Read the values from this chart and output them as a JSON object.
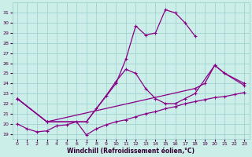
{
  "bg_color": "#cceee8",
  "grid_color": "#99cccc",
  "line_color": "#880088",
  "xlabel": "Windchill (Refroidissement éolien,°C)",
  "ylim": [
    18.5,
    32.0
  ],
  "xlim": [
    -0.5,
    23.5
  ],
  "yticks": [
    19,
    20,
    21,
    22,
    23,
    24,
    25,
    26,
    27,
    28,
    29,
    30,
    31
  ],
  "xticks": [
    0,
    1,
    2,
    3,
    4,
    5,
    6,
    7,
    8,
    9,
    10,
    11,
    12,
    13,
    14,
    15,
    16,
    17,
    18,
    19,
    20,
    21,
    22,
    23
  ],
  "line_top": {
    "x": [
      0,
      3,
      7,
      10,
      11,
      12,
      13,
      14,
      15,
      16,
      17,
      18
    ],
    "y": [
      22.5,
      20.2,
      20.2,
      24.0,
      26.4,
      29.7,
      28.8,
      29.0,
      31.3,
      31.0,
      30.0,
      28.7
    ]
  },
  "line_upper_mid": {
    "x": [
      0,
      3,
      7,
      8,
      9,
      10,
      11,
      12,
      13,
      14,
      15,
      16,
      17,
      18,
      20,
      21,
      23
    ],
    "y": [
      22.5,
      20.2,
      20.2,
      21.5,
      22.8,
      24.2,
      25.4,
      25.0,
      23.5,
      22.5,
      22.0,
      22.0,
      22.5,
      23.0,
      25.8,
      25.0,
      24.0
    ]
  },
  "line_lower_mid": {
    "x": [
      0,
      3,
      18,
      19,
      20,
      21,
      23
    ],
    "y": [
      22.5,
      20.2,
      23.5,
      24.0,
      25.8,
      25.0,
      23.8
    ]
  },
  "line_bottom": {
    "x": [
      0,
      1,
      2,
      3,
      4,
      5,
      6,
      7,
      8,
      9,
      10,
      11,
      12,
      13,
      14,
      15,
      16,
      17,
      18,
      19,
      20,
      21,
      22,
      23
    ],
    "y": [
      20.0,
      19.5,
      19.2,
      19.3,
      19.8,
      19.9,
      20.2,
      18.9,
      19.5,
      19.9,
      20.2,
      20.4,
      20.7,
      21.0,
      21.2,
      21.5,
      21.7,
      22.0,
      22.2,
      22.4,
      22.6,
      22.7,
      22.9,
      23.1
    ]
  }
}
